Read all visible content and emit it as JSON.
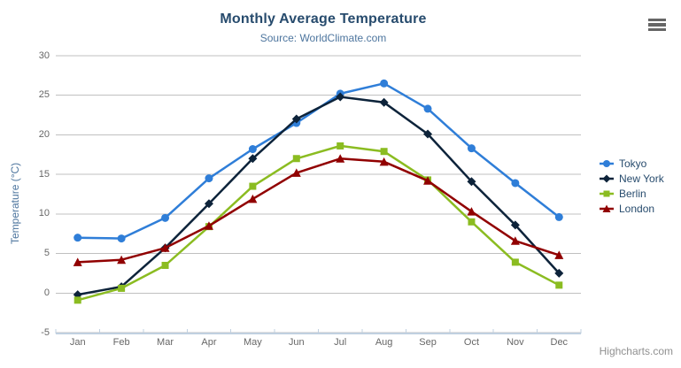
{
  "chart_data": {
    "type": "line",
    "title": "Monthly Average Temperature",
    "subtitle": "Source: WorldClimate.com",
    "xlabel": "",
    "ylabel": "Temperature (°C)",
    "categories": [
      "Jan",
      "Feb",
      "Mar",
      "Apr",
      "May",
      "Jun",
      "Jul",
      "Aug",
      "Sep",
      "Oct",
      "Nov",
      "Dec"
    ],
    "ylim": [
      -5,
      30
    ],
    "yticks": [
      -5,
      0,
      5,
      10,
      15,
      20,
      25,
      30
    ],
    "grid": true,
    "legend_position": "right",
    "series": [
      {
        "name": "Tokyo",
        "color": "#2f7ed8",
        "marker": "circle",
        "values": [
          7.0,
          6.9,
          9.5,
          14.5,
          18.2,
          21.5,
          25.2,
          26.5,
          23.3,
          18.3,
          13.9,
          9.6
        ]
      },
      {
        "name": "New York",
        "color": "#0d233a",
        "marker": "diamond",
        "values": [
          -0.2,
          0.8,
          5.7,
          11.3,
          17.0,
          22.0,
          24.8,
          24.1,
          20.1,
          14.1,
          8.6,
          2.5
        ]
      },
      {
        "name": "Berlin",
        "color": "#8bbc21",
        "marker": "square",
        "values": [
          -0.9,
          0.6,
          3.5,
          8.4,
          13.5,
          17.0,
          18.6,
          17.9,
          14.3,
          9.0,
          3.9,
          1.0
        ]
      },
      {
        "name": "London",
        "color": "#910000",
        "marker": "triangle",
        "values": [
          3.9,
          4.2,
          5.7,
          8.5,
          11.9,
          15.2,
          17.0,
          16.6,
          14.2,
          10.3,
          6.6,
          4.8
        ]
      }
    ],
    "credits": "Highcharts.com"
  },
  "export_button": {
    "icon": "hamburger-icon"
  },
  "colors": {
    "title": "#274b6d",
    "subtitle": "#4d759e",
    "axis_title": "#4d759e",
    "axis_labels": "#666666",
    "grid": "#c0c0c0",
    "axis_line": "#c0d0e0",
    "legend_text": "#274b6d",
    "credits": "#909090",
    "menu_icon": "#666666",
    "background": "#ffffff"
  }
}
